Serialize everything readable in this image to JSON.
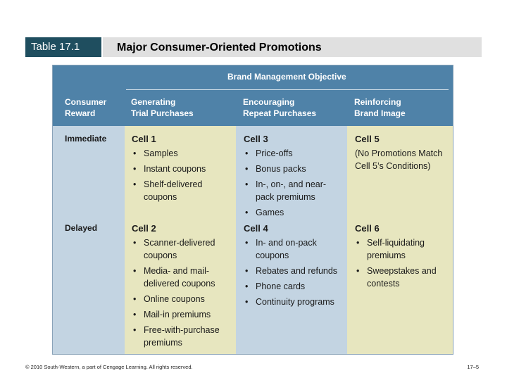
{
  "slide": {
    "label": "Table 17.1",
    "title": "Major Consumer-Oriented Promotions"
  },
  "table": {
    "objective_header": "Brand Management Objective",
    "reward_header": [
      "Consumer",
      "Reward"
    ],
    "columns": [
      [
        "Generating",
        "Trial Purchases"
      ],
      [
        "Encouraging",
        "Repeat Purchases"
      ],
      [
        "Reinforcing",
        "Brand Image"
      ]
    ],
    "rows": [
      {
        "label": "Immediate",
        "cells": [
          {
            "title": "Cell 1",
            "items": [
              "Samples",
              "Instant coupons",
              "Shelf-delivered coupons"
            ]
          },
          {
            "title": "Cell 3",
            "items": [
              "Price-offs",
              "Bonus packs",
              "In-, on-, and near-pack premiums",
              "Games"
            ]
          },
          {
            "title": "Cell 5",
            "text": "(No Promotions Match Cell 5’s Conditions)"
          }
        ]
      },
      {
        "label": "Delayed",
        "cells": [
          {
            "title": "Cell 2",
            "items": [
              "Scanner-delivered coupons",
              "Media- and mail-delivered coupons",
              "Online coupons",
              "Mail-in premiums",
              "Free-with-purchase premiums"
            ]
          },
          {
            "title": "Cell 4",
            "items": [
              "In- and on-pack coupons",
              "Rebates and refunds",
              "Phone cards",
              "Continuity programs"
            ]
          },
          {
            "title": "Cell 6",
            "items": [
              "Self-liquidating premiums",
              "Sweepstakes and contests"
            ]
          }
        ]
      }
    ]
  },
  "footer": {
    "copyright": "© 2010 South-Western, a part of Cengage Learning. All rights reserved.",
    "page": "17–5"
  }
}
